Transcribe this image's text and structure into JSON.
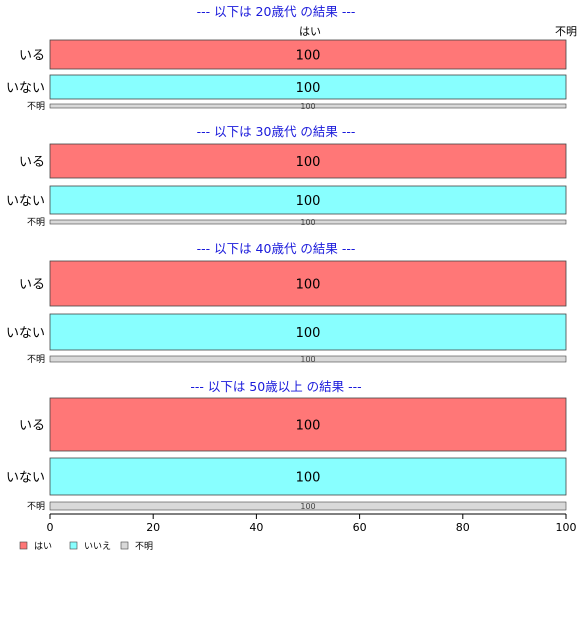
{
  "chart_data": {
    "type": "bar",
    "orientation": "horizontal",
    "stacked": true,
    "column_headers": [
      "はい",
      "不明"
    ],
    "panels": [
      {
        "title": "--- 以下は 20歳代 の結果 ---",
        "categories": [
          "いる",
          "いない",
          "不明"
        ],
        "values": [
          100,
          100,
          100
        ]
      },
      {
        "title": "--- 以下は 30歳代 の結果 ---",
        "categories": [
          "いる",
          "いない",
          "不明"
        ],
        "values": [
          100,
          100,
          100
        ]
      },
      {
        "title": "--- 以下は 40歳代 の結果 ---",
        "categories": [
          "いる",
          "いない",
          "不明"
        ],
        "values": [
          100,
          100,
          100
        ]
      },
      {
        "title": "--- 以下は 50歳以上 の結果 ---",
        "categories": [
          "いる",
          "いない",
          "不明"
        ],
        "values": [
          100,
          100,
          100
        ]
      }
    ],
    "xlim": [
      0,
      100
    ],
    "xticks": [
      0,
      20,
      40,
      60,
      80,
      100
    ],
    "legend": [
      {
        "label": "はい",
        "color": "#ff7777"
      },
      {
        "label": "いいえ",
        "color": "#88ffff"
      },
      {
        "label": "不明",
        "color": "#d9d9d9"
      }
    ],
    "legend_position": "bottom-left",
    "colors": [
      "#ff7777",
      "#88ffff",
      "#d9d9d9"
    ]
  }
}
